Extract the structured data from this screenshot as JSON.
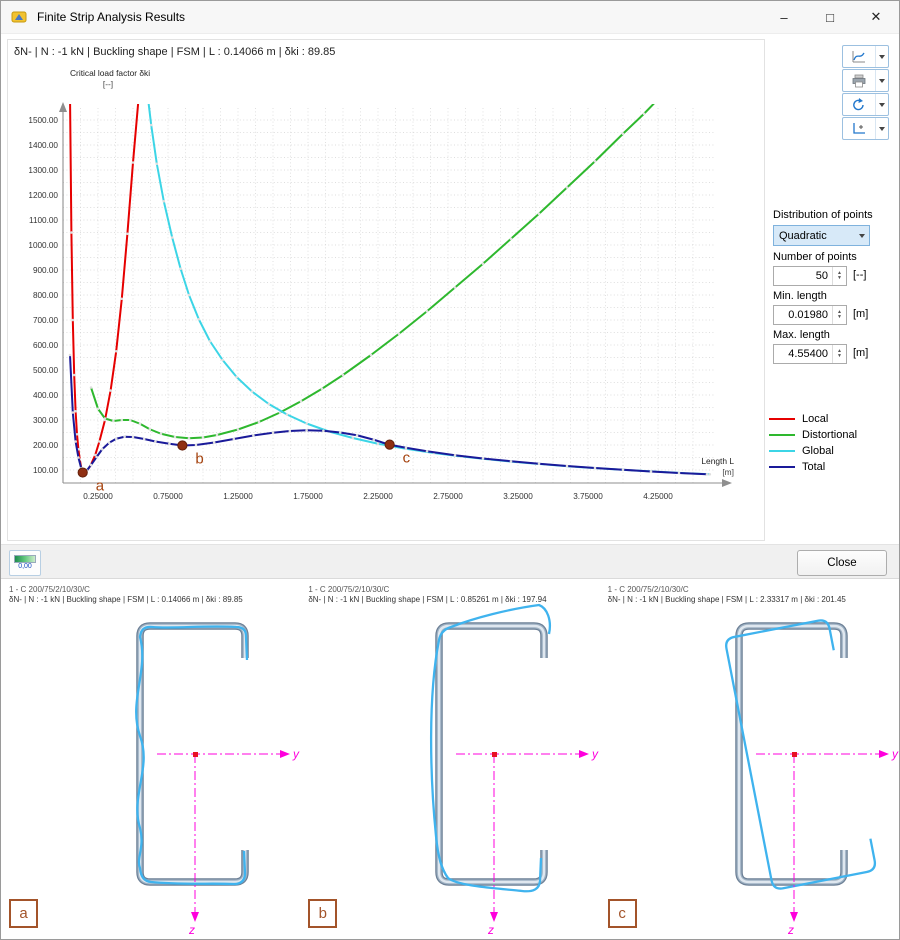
{
  "window": {
    "title": "Finite Strip Analysis Results",
    "controls": {
      "minimize": "–",
      "maximize": "□",
      "close": "✕"
    }
  },
  "header": {
    "info": "δN- | N : -1 kN | Buckling shape | FSM | L : 0.14066 m | δki : 89.85"
  },
  "chart_data": {
    "type": "line",
    "ylabel": "Critical load factor δki",
    "ylabel_unit": "[--]",
    "xlabel": "Length L",
    "xlabel_unit": "[m]",
    "xlim": [
      0,
      4.65
    ],
    "ylim": [
      50,
      1550
    ],
    "grid": true,
    "legend_position": "right",
    "yticks": [
      100,
      200,
      300,
      400,
      500,
      600,
      700,
      800,
      900,
      1000,
      1100,
      1200,
      1300,
      1400,
      1500
    ],
    "ytick_labels": [
      "100.00",
      "200.00",
      "300.00",
      "400.00",
      "500.00",
      "600.00",
      "700.00",
      "800.00",
      "900.00",
      "1000.00",
      "1100.00",
      "1200.00",
      "1300.00",
      "1400.00",
      "1500.00"
    ],
    "xticks": [
      0.25,
      0.75,
      1.25,
      1.75,
      2.25,
      2.75,
      3.25,
      3.75,
      4.25
    ],
    "xtick_labels": [
      "0.25000",
      "0.75000",
      "1.25000",
      "1.75000",
      "2.25000",
      "2.75000",
      "3.25000",
      "3.75000",
      "4.25000"
    ],
    "series": [
      {
        "name": "Local",
        "color": "#e60000",
        "points": [
          [
            0.05,
            1600
          ],
          [
            0.06,
            1050
          ],
          [
            0.07,
            700
          ],
          [
            0.08,
            480
          ],
          [
            0.09,
            335
          ],
          [
            0.1,
            243
          ],
          [
            0.11,
            183
          ],
          [
            0.12,
            142
          ],
          [
            0.13,
            110
          ],
          [
            0.141,
            90
          ],
          [
            0.16,
            92
          ],
          [
            0.18,
            103
          ],
          [
            0.2,
            122
          ],
          [
            0.23,
            160
          ],
          [
            0.26,
            214
          ],
          [
            0.3,
            300
          ],
          [
            0.34,
            418
          ],
          [
            0.38,
            575
          ],
          [
            0.42,
            785
          ],
          [
            0.46,
            1045
          ],
          [
            0.5,
            1330
          ],
          [
            0.545,
            1620
          ]
        ]
      },
      {
        "name": "Distortional",
        "color": "#2eb82e",
        "points": [
          [
            0.2,
            430
          ],
          [
            0.25,
            345
          ],
          [
            0.3,
            306
          ],
          [
            0.36,
            296
          ],
          [
            0.42,
            300
          ],
          [
            0.48,
            300
          ],
          [
            0.55,
            285
          ],
          [
            0.62,
            263
          ],
          [
            0.7,
            245
          ],
          [
            0.8,
            232
          ],
          [
            0.9,
            227
          ],
          [
            1.0,
            230
          ],
          [
            1.1,
            240
          ],
          [
            1.25,
            262
          ],
          [
            1.4,
            292
          ],
          [
            1.55,
            330
          ],
          [
            1.7,
            375
          ],
          [
            1.85,
            425
          ],
          [
            2.0,
            480
          ],
          [
            2.2,
            560
          ],
          [
            2.4,
            645
          ],
          [
            2.6,
            735
          ],
          [
            2.8,
            830
          ],
          [
            3.0,
            925
          ],
          [
            3.2,
            1025
          ],
          [
            3.4,
            1125
          ],
          [
            3.6,
            1230
          ],
          [
            3.8,
            1335
          ],
          [
            4.0,
            1445
          ],
          [
            4.15,
            1525
          ],
          [
            4.28,
            1600
          ]
        ]
      },
      {
        "name": "Global",
        "color": "#3cd5e6",
        "points": [
          [
            0.6,
            1620
          ],
          [
            0.63,
            1480
          ],
          [
            0.67,
            1325
          ],
          [
            0.72,
            1175
          ],
          [
            0.78,
            1030
          ],
          [
            0.84,
            905
          ],
          [
            0.9,
            800
          ],
          [
            0.97,
            703
          ],
          [
            1.05,
            615
          ],
          [
            1.14,
            540
          ],
          [
            1.24,
            472
          ],
          [
            1.35,
            414
          ],
          [
            1.47,
            364
          ],
          [
            1.6,
            322
          ],
          [
            1.74,
            286
          ],
          [
            1.9,
            254
          ],
          [
            2.07,
            228
          ],
          [
            2.25,
            205
          ],
          [
            2.45,
            185
          ],
          [
            2.65,
            168
          ],
          [
            2.85,
            154
          ],
          [
            3.05,
            142
          ],
          [
            3.25,
            131
          ],
          [
            3.45,
            122
          ],
          [
            3.65,
            113
          ],
          [
            3.85,
            106
          ],
          [
            4.05,
            99
          ],
          [
            4.25,
            93
          ],
          [
            4.45,
            87
          ],
          [
            4.62,
            83
          ]
        ]
      },
      {
        "name": "Total",
        "color": "#1a1a99",
        "points": [
          [
            0.05,
            560
          ],
          [
            0.07,
            330
          ],
          [
            0.09,
            214
          ],
          [
            0.11,
            150
          ],
          [
            0.13,
            107
          ],
          [
            0.141,
            90
          ],
          [
            0.17,
            98
          ],
          [
            0.2,
            120
          ],
          [
            0.24,
            152
          ],
          [
            0.28,
            183
          ],
          [
            0.33,
            209
          ],
          [
            0.38,
            225
          ],
          [
            0.44,
            233
          ],
          [
            0.5,
            232
          ],
          [
            0.58,
            224
          ],
          [
            0.66,
            214
          ],
          [
            0.76,
            205
          ],
          [
            0.853,
            198
          ],
          [
            0.95,
            200
          ],
          [
            1.08,
            210
          ],
          [
            1.22,
            224
          ],
          [
            1.36,
            238
          ],
          [
            1.5,
            249
          ],
          [
            1.62,
            256
          ],
          [
            1.74,
            259
          ],
          [
            1.86,
            257
          ],
          [
            1.98,
            250
          ],
          [
            2.1,
            239
          ],
          [
            2.22,
            221
          ],
          [
            2.333,
            201
          ],
          [
            2.45,
            189
          ],
          [
            2.6,
            175
          ],
          [
            2.8,
            159
          ],
          [
            3.0,
            146
          ],
          [
            3.2,
            135
          ],
          [
            3.4,
            125
          ],
          [
            3.6,
            116
          ],
          [
            3.8,
            108
          ],
          [
            4.0,
            101
          ],
          [
            4.2,
            94
          ],
          [
            4.4,
            88
          ],
          [
            4.6,
            83
          ]
        ]
      }
    ],
    "markers": [
      {
        "label": "a",
        "x": 0.14066,
        "y": 89.85
      },
      {
        "label": "b",
        "x": 0.85261,
        "y": 197.94
      },
      {
        "label": "c",
        "x": 2.33317,
        "y": 201.45
      }
    ],
    "marker_color": "#8f2f12",
    "marker_label_color": "#a5430f"
  },
  "toolbar": {
    "buttons": [
      {
        "name": "diagram-settings"
      },
      {
        "name": "print"
      },
      {
        "name": "refresh"
      },
      {
        "name": "axes-settings"
      }
    ]
  },
  "controls": {
    "distribution_label": "Distribution of points",
    "distribution_value": "Quadratic",
    "points_label": "Number of points",
    "points_value": "50",
    "points_unit": "[--]",
    "min_label": "Min. length",
    "min_value": "0.01980",
    "min_unit": "[m]",
    "max_label": "Max. length",
    "max_value": "4.55400",
    "max_unit": "[m]"
  },
  "legend": {
    "items": [
      {
        "label": "Local",
        "color": "#e60000"
      },
      {
        "label": "Distortional",
        "color": "#2eb82e"
      },
      {
        "label": "Global",
        "color": "#3cd5e6"
      },
      {
        "label": "Total",
        "color": "#1a1a99"
      }
    ]
  },
  "footer": {
    "precision_label": "0,00",
    "close_label": "Close"
  },
  "panels": [
    {
      "letter": "a",
      "title": "1 - C 200/75/2/10/30/C",
      "info": "δN- | N : -1 kN | Buckling shape | FSM | L : 0.14066 m | δki : 89.85"
    },
    {
      "letter": "b",
      "title": "1 - C 200/75/2/10/30/C",
      "info": "δN- | N : -1 kN | Buckling shape | FSM | L : 0.85261 m | δki : 197.94"
    },
    {
      "letter": "c",
      "title": "1 - C 200/75/2/10/30/C",
      "info": "δN- | N : -1 kN | Buckling shape | FSM | L : 2.33317 m | δki : 201.45"
    }
  ],
  "section_axes": {
    "y": "y",
    "z": "z"
  }
}
